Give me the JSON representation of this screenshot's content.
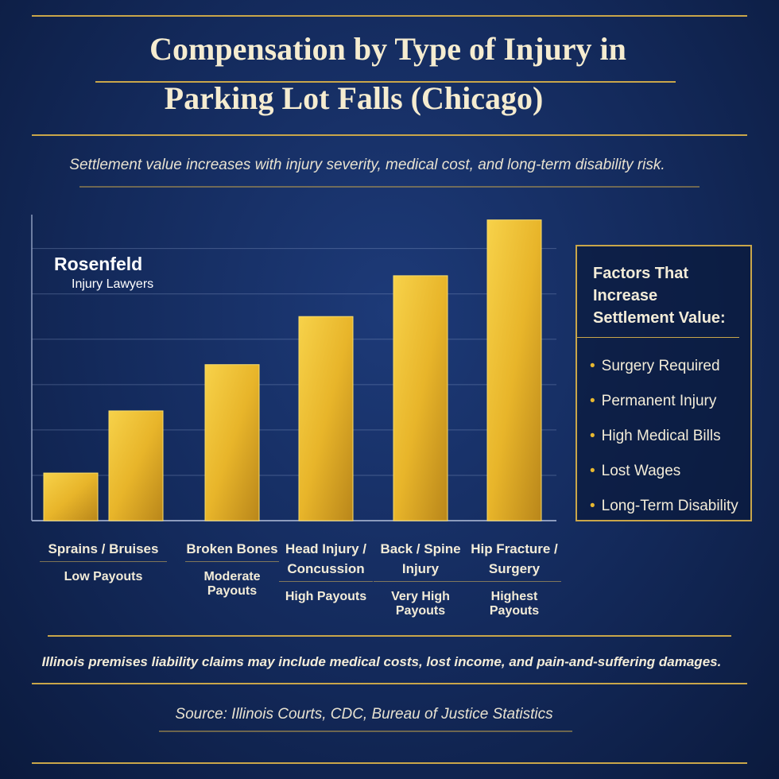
{
  "chart_data": {
    "type": "bar",
    "title": [
      "Compensation by Type of Injury in",
      "Parking Lot Falls (Chicago)"
    ],
    "subtitle": "Settlement value increases with injury severity, medical cost, and long-term disability risk.",
    "categories": [
      "Sprains / Bruises",
      null,
      "Broken Bones",
      "Head Injury / Concussion",
      "Back / Spine Injury",
      "Hip Fracture / Surgery"
    ],
    "payout_labels": [
      "Low Payouts",
      null,
      "Moderate Payouts",
      "High Payouts",
      "Very High Payouts",
      "Highest Payouts"
    ],
    "values": [
      1.05,
      2.42,
      3.44,
      4.5,
      5.4,
      6.63
    ],
    "color": "#e8b52a",
    "ylim": [
      0,
      6.8
    ],
    "yticks": [
      0,
      1,
      2,
      3,
      4,
      5,
      6
    ],
    "grid": true,
    "logo": [
      "Rosenfeld",
      "Injury Lawyers"
    ],
    "factors_title": "Factors That Increase Settlement Value:",
    "factors": [
      "Surgery Required",
      "Permanent Injury",
      "High Medical Bills",
      "Lost Wages",
      "Long-Term Disability"
    ],
    "note": "Illinois premises liability claims may include medical costs, lost income, and pain-and-suffering damages.",
    "source": "Source: Illinois Courts, CDC, Bureau of Justice Statistics"
  }
}
